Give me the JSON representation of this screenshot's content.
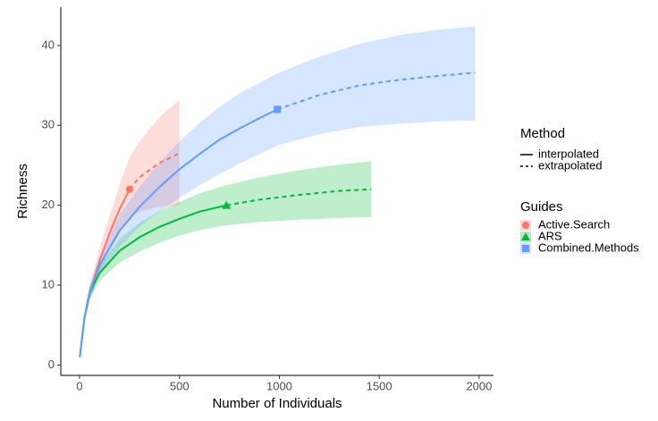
{
  "chart_data": {
    "type": "rarefaction",
    "x_label": "Number of Individuals",
    "y_label": "Richness",
    "xlim": [
      -94,
      2072
    ],
    "ylim": [
      -1.3,
      44.8
    ],
    "xticks": [
      0,
      500,
      1000,
      1500,
      2000
    ],
    "yticks": [
      0,
      10,
      20,
      30,
      40
    ],
    "grid": false,
    "method_legend": {
      "title": "Method",
      "entries": [
        "interpolated",
        "extrapolated"
      ]
    },
    "legend_title": "Guides",
    "series": [
      {
        "name": "Active.Search",
        "color": "#F8766D",
        "shape": "circle",
        "x": [
          1,
          25,
          50,
          100,
          150,
          200,
          250,
          300,
          400,
          500
        ],
        "values": [
          1,
          6,
          9,
          13,
          16.5,
          19.5,
          22,
          23.5,
          25.3,
          26.5
        ],
        "lower": [
          1,
          5.3,
          8,
          11.5,
          14.3,
          16.5,
          18.5,
          19.2,
          19.8,
          20
        ],
        "upper": [
          1,
          6.7,
          10,
          14.5,
          18.7,
          22.5,
          26,
          28,
          31,
          33.2
        ],
        "observed": {
          "x": 250,
          "y": 22
        }
      },
      {
        "name": "ARS",
        "color": "#00BA38",
        "shape": "triangle",
        "x": [
          1,
          25,
          50,
          100,
          200,
          300,
          400,
          500,
          600,
          735,
          900,
          1100,
          1300,
          1460
        ],
        "values": [
          1,
          6,
          9,
          11.5,
          14.3,
          16,
          17.3,
          18.3,
          19.2,
          20,
          20.7,
          21.3,
          21.8,
          22
        ],
        "lower": [
          1,
          5.4,
          8.2,
          10.5,
          12.8,
          14.2,
          15.3,
          16.2,
          16.9,
          17.5,
          17.9,
          18.2,
          18.4,
          18.5
        ],
        "upper": [
          1,
          6.6,
          9.8,
          12.5,
          15.8,
          17.8,
          19.3,
          20.4,
          21.5,
          22.5,
          23.5,
          24.4,
          25.1,
          25.5
        ],
        "observed": {
          "x": 735,
          "y": 20
        }
      },
      {
        "name": "Combined.Methods",
        "color": "#619CFF",
        "shape": "square",
        "x": [
          1,
          25,
          50,
          100,
          200,
          300,
          400,
          500,
          600,
          700,
          800,
          900,
          990,
          1200,
          1400,
          1600,
          1800,
          1980
        ],
        "values": [
          1,
          6,
          9,
          12.5,
          16.8,
          19.8,
          22.3,
          24.5,
          26.4,
          28.2,
          29.6,
          30.9,
          32,
          33.8,
          35,
          35.7,
          36.2,
          36.6
        ],
        "lower": [
          1,
          5.4,
          8.2,
          11.3,
          14.8,
          17.3,
          19.2,
          20.9,
          22.5,
          23.9,
          25.2,
          26.4,
          27.5,
          28.9,
          29.8,
          30.2,
          30.5,
          30.6
        ],
        "upper": [
          1,
          6.6,
          9.8,
          13.7,
          18.8,
          22.3,
          25.3,
          28,
          30.3,
          32.3,
          34,
          35.3,
          36.5,
          38.6,
          40.2,
          41.3,
          42,
          42.4
        ],
        "observed": {
          "x": 990,
          "y": 32
        }
      }
    ]
  }
}
